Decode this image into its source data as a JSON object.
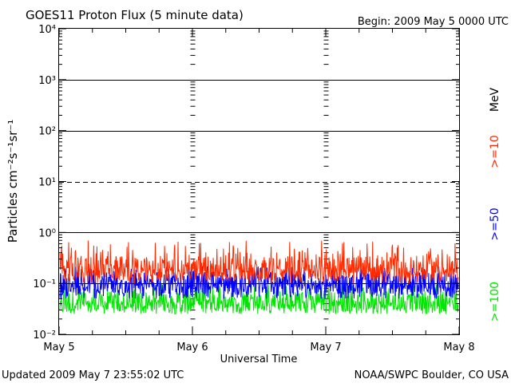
{
  "header": {
    "title": "GOES11 Proton Flux (5 minute data)",
    "begin": "Begin: 2009 May 5 0000 UTC"
  },
  "footer": {
    "updated": "Updated 2009 May  7 23:55:02 UTC",
    "credit": "NOAA/SWPC Boulder, CO USA"
  },
  "legend": {
    "unit": "MeV",
    "entries": [
      {
        "label": ">=10",
        "color": "#ff2a00"
      },
      {
        "label": ">=50",
        "color": "#0000ff"
      },
      {
        "label": ">=100",
        "color": "#00e600"
      }
    ]
  },
  "chart_data": {
    "type": "line",
    "ylabel": "Particles cm⁻²s⁻¹sr⁻¹",
    "xlabel": "Universal Time",
    "yscale": "log",
    "ylim": [
      0.01,
      10000
    ],
    "y_ticks": [
      "10⁻²",
      "10⁻¹",
      "10⁰",
      "10¹",
      "10²",
      "10³",
      "10⁴"
    ],
    "x_ticks": [
      "May 5",
      "May 6",
      "May 7",
      "May 8"
    ],
    "xlim": [
      "2009-05-05 00:00",
      "2009-05-08 00:00"
    ],
    "series": [
      {
        "name": ">=10",
        "color": "#ff2a00",
        "typical": 0.2,
        "range": [
          0.1,
          0.7
        ]
      },
      {
        "name": ">=50",
        "color": "#0000ff",
        "typical": 0.1,
        "range": [
          0.05,
          0.22
        ]
      },
      {
        "name": ">=100",
        "color": "#00e600",
        "typical": 0.045,
        "range": [
          0.025,
          0.1
        ]
      }
    ],
    "reference_lines": [
      {
        "value": 10,
        "style": "dashed"
      }
    ]
  }
}
